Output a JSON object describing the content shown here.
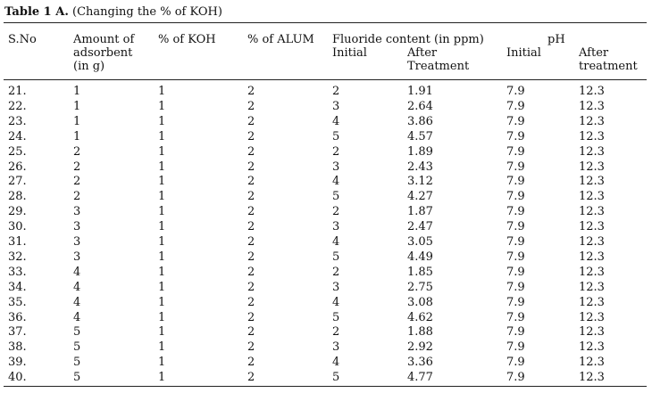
{
  "caption": {
    "label": "Table 1 A.",
    "text": " (Changing the % of KOH)"
  },
  "headers": {
    "sno": "S.No",
    "amount": "Amount of\nadsorbent\n(in g)",
    "koh": "% of KOH",
    "alum": "% of ALUM",
    "fluoride": "Fluoride content (in ppm)",
    "fluoride_initial": "Initial",
    "fluoride_after": "After\nTreatment",
    "ph": "pH",
    "ph_initial": "Initial",
    "ph_after": "After\ntreatment"
  },
  "rows": [
    [
      "21.",
      "1",
      "1",
      "2",
      "2",
      "1.91",
      "7.9",
      "12.3"
    ],
    [
      "22.",
      "1",
      "1",
      "2",
      "3",
      "2.64",
      "7.9",
      "12.3"
    ],
    [
      "23.",
      "1",
      "1",
      "2",
      "4",
      "3.86",
      "7.9",
      "12.3"
    ],
    [
      "24.",
      "1",
      "1",
      "2",
      "5",
      "4.57",
      "7.9",
      "12.3"
    ],
    [
      "25.",
      "2",
      "1",
      "2",
      "2",
      "1.89",
      "7.9",
      "12.3"
    ],
    [
      "26.",
      "2",
      "1",
      "2",
      "3",
      "2.43",
      "7.9",
      "12.3"
    ],
    [
      "27.",
      "2",
      "1",
      "2",
      "4",
      "3.12",
      "7.9",
      "12.3"
    ],
    [
      "28.",
      "2",
      "1",
      "2",
      "5",
      "4.27",
      "7.9",
      "12.3"
    ],
    [
      "29.",
      "3",
      "1",
      "2",
      "2",
      "1.87",
      "7.9",
      "12.3"
    ],
    [
      "30.",
      "3",
      "1",
      "2",
      "3",
      "2.47",
      "7.9",
      "12.3"
    ],
    [
      "31.",
      "3",
      "1",
      "2",
      "4",
      "3.05",
      "7.9",
      "12.3"
    ],
    [
      "32.",
      "3",
      "1",
      "2",
      "5",
      "4.49",
      "7.9",
      "12.3"
    ],
    [
      "33.",
      "4",
      "1",
      "2",
      "2",
      "1.85",
      "7.9",
      "12.3"
    ],
    [
      "34.",
      "4",
      "1",
      "2",
      "3",
      "2.75",
      "7.9",
      "12.3"
    ],
    [
      "35.",
      "4",
      "1",
      "2",
      "4",
      "3.08",
      "7.9",
      "12.3"
    ],
    [
      "36.",
      "4",
      "1",
      "2",
      "5",
      "4.62",
      "7.9",
      "12.3"
    ],
    [
      "37.",
      "5",
      "1",
      "2",
      "2",
      "1.88",
      "7.9",
      "12.3"
    ],
    [
      "38.",
      "5",
      "1",
      "2",
      "3",
      "2.92",
      "7.9",
      "12.3"
    ],
    [
      "39.",
      "5",
      "1",
      "2",
      "4",
      "3.36",
      "7.9",
      "12.3"
    ],
    [
      "40.",
      "5",
      "1",
      "2",
      "5",
      "4.77",
      "7.9",
      "12.3"
    ]
  ]
}
